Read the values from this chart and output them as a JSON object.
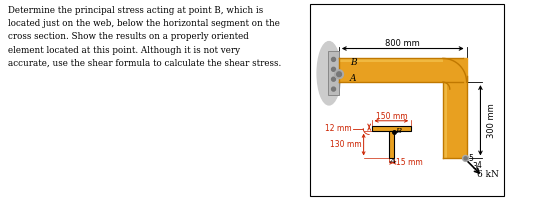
{
  "text_block": "Determine the principal stress acting at point B, which is\nlocated just on the web, below the horizontal segment on the\ncross section. Show the results on a properly oriented\nelement located at this point. Although it is not very\naccurate, use the shear formula to calculate the shear stress.",
  "dim_800mm": "800 mm",
  "dim_300mm": "300 mm",
  "dim_150mm": "150 mm",
  "dim_12mm": "12 mm",
  "dim_130mm": "130 mm",
  "dim_15mm": "15 mm",
  "force_label": "6 kN",
  "ratio_5": "5",
  "ratio_4": "4",
  "ratio_3": "3",
  "label_B_beam": "B",
  "label_A_beam": "A",
  "label_B_section": "B",
  "label_A_section": "A",
  "beam_color": "#E8A020",
  "beam_dark": "#C07800",
  "beam_light": "#F0B840",
  "bg_color": "#ffffff",
  "text_color": "#000000",
  "dim_color": "#CC2200",
  "wall_color": "#BBBBBB"
}
